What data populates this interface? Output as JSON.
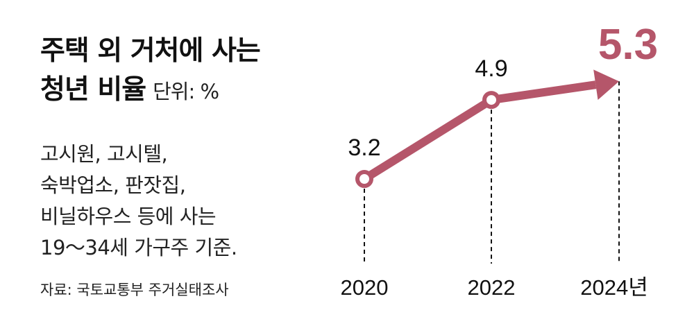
{
  "title_line1": "주택 외 거처에 사는",
  "title_line2": "청년 비율",
  "unit": "단위: %",
  "description": [
    "고시원, 고시텔,",
    "숙박업소, 판잣집,",
    "비닐하우스 등에 사는",
    "19～34세 가구주 기준."
  ],
  "source": "자료: 국토교통부 주거실태조사",
  "chart_data": {
    "type": "line",
    "title": "주택 외 거처에 사는 청년 비율",
    "ylabel": "단위: %",
    "categories": [
      "2020",
      "2022",
      "2024년"
    ],
    "values": [
      3.2,
      4.9,
      5.3
    ],
    "data_labels": [
      "3.2",
      "4.9",
      "5.3"
    ],
    "highlight_index": 2,
    "line_color": "#b5566a",
    "grid": false
  }
}
